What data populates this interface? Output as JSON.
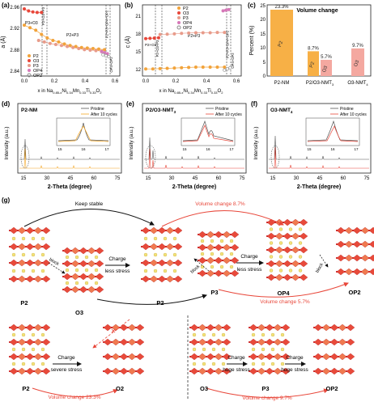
{
  "panels": {
    "a": {
      "tag": "(a)",
      "ylabel": "a (Å)",
      "xlabel_parts": [
        "x in Na",
        "0.85-x",
        "Ni",
        "0.34",
        "Mn",
        "0.33",
        "Ti",
        "0.33",
        "O",
        "2"
      ],
      "yticks": [
        "2.84",
        "2.88",
        "2.92",
        "2.96"
      ],
      "xticks": [
        "0.0",
        "0.2",
        "0.4",
        "0.6"
      ],
      "legend": [
        "P2",
        "O3",
        "P3",
        "OP4",
        "OP2"
      ],
      "annotations": [
        "P2+O3+P3",
        "P3+O3",
        "P2+P3",
        "P2+P3+OP4+OP2",
        "OP4+OP2"
      ]
    },
    "b": {
      "tag": "(b)",
      "ylabel": "c (Å)",
      "xlabel_parts": [
        "x in Na",
        "0.85-x",
        "Ni",
        "0.34",
        "Mn",
        "0.33",
        "Ti",
        "0.33",
        "O",
        "2"
      ],
      "yticks": [
        "12",
        "15",
        "18",
        "21"
      ],
      "xticks": [
        "0.0",
        "0.2",
        "0.4",
        "0.6"
      ],
      "legend": [
        "P2",
        "O3",
        "P3",
        "OP4",
        "OP2"
      ],
      "annotations": [
        "P2+O3",
        "P2+O3+P3",
        "P2+P3",
        "P2+P3+OP4+OP2",
        "OP4+OP2"
      ]
    },
    "c": {
      "tag": "(c)",
      "title": "Volume change",
      "ylabel": "Percent (%)",
      "yticks": [
        "0",
        "5",
        "10",
        "15",
        "20",
        "25"
      ]
    },
    "d": {
      "tag": "(d)",
      "label": "P2-NM",
      "legend": [
        "Pristine",
        "After 10 cycles"
      ],
      "inset_ticks": [
        "15",
        "16",
        "17"
      ],
      "xticks": [
        "15",
        "30",
        "45",
        "60",
        "75"
      ],
      "ylabel": "Intensity (a.u.)",
      "xlabel": "2-Theta (degree)"
    },
    "e": {
      "tag": "(e)",
      "label_main": "P2/O3-NMT",
      "label_sub": "3",
      "legend": [
        "Pristine",
        "After 10 cycles"
      ],
      "inset_ticks": [
        "15",
        "16",
        "17"
      ],
      "xticks": [
        "15",
        "30",
        "45",
        "60",
        "75"
      ],
      "ylabel": "Intensity (a.u.)",
      "xlabel": "2-Theta (degree)"
    },
    "f": {
      "tag": "(f)",
      "label_main": "O3-NMT",
      "label_sub": "4",
      "legend": [
        "Pristine",
        "After 10 cycles"
      ],
      "inset_ticks": [
        "15",
        "16",
        "17"
      ],
      "xticks": [
        "15",
        "30",
        "45",
        "60",
        "75"
      ],
      "ylabel": "Intensity (a.u.)",
      "xlabel": "2-Theta (degree)"
    },
    "g": {
      "tag": "(g)",
      "keep_stable": "Keep stable",
      "vc_87": "Volume change 8.7%",
      "vc_57": "Volume change 5.7%",
      "vc_233": "Volume change 23.3%",
      "vc_97": "Volume change 9.7%",
      "charge": "Charge",
      "less_stress": "less stress",
      "severe_stress": "severe stress",
      "huge_stress": "huge stress",
      "block": "block",
      "phases": {
        "p2": "P2",
        "o3": "O3",
        "p3": "P3",
        "op4": "OP4",
        "op2": "OP2",
        "o2": "O2"
      }
    }
  },
  "chart_data": [
    {
      "panel": "c",
      "type": "bar",
      "title": "Volume change",
      "ylabel": "Percent (%)",
      "ylim": [
        0,
        25
      ],
      "categories": [
        "P2-NM",
        "P2/O3-NMT",
        "O3-NMT"
      ],
      "category_subscripts": [
        "",
        "3",
        "4"
      ],
      "bars": [
        {
          "group": 0,
          "phase": "P2",
          "value": 23.3,
          "label": "23.3%",
          "color": "#f7b046"
        },
        {
          "group": 1,
          "phase": "P2",
          "value": 8.7,
          "label": "8.7%",
          "color": "#f7b046"
        },
        {
          "group": 1,
          "phase": "O3",
          "value": 5.7,
          "label": "5.7%",
          "color": "#f4a8a0"
        },
        {
          "group": 2,
          "phase": "O3",
          "value": 9.7,
          "label": "9.7%",
          "color": "#f4a8a0"
        }
      ]
    },
    {
      "panel": "a",
      "type": "scatter",
      "ylabel": "a (Å)",
      "ylim": [
        2.83,
        2.97
      ],
      "xlim": [
        0,
        0.65
      ],
      "series": [
        {
          "name": "P2",
          "color": "#f2a33a",
          "x": [
            0.0,
            0.04,
            0.08,
            0.12,
            0.16,
            0.2,
            0.24,
            0.28,
            0.32,
            0.36,
            0.4,
            0.44,
            0.48,
            0.52,
            0.56
          ],
          "y": [
            2.93,
            2.925,
            2.92,
            2.912,
            2.905,
            2.9,
            2.897,
            2.893,
            2.89,
            2.888,
            2.886,
            2.885,
            2.884,
            2.883,
            2.882
          ]
        },
        {
          "name": "O3",
          "color": "#e8473a",
          "x": [
            0.0,
            0.03,
            0.06,
            0.09,
            0.12
          ],
          "y": [
            2.962,
            2.958,
            2.956,
            2.955,
            2.955
          ]
        },
        {
          "name": "P3",
          "color": "#e89b8a",
          "x": [
            0.1,
            0.14,
            0.18,
            0.22,
            0.26,
            0.3,
            0.34,
            0.38,
            0.42,
            0.46,
            0.5,
            0.54
          ],
          "y": [
            2.9,
            2.897,
            2.894,
            2.892,
            2.89,
            2.888,
            2.886,
            2.884,
            2.882,
            2.881,
            2.88,
            2.879
          ]
        },
        {
          "name": "OP4",
          "color": "#d678b8",
          "x": [
            0.54,
            0.56,
            0.58
          ],
          "y": [
            2.878,
            2.876,
            2.874
          ]
        },
        {
          "name": "OP2",
          "color": "#888888",
          "x": [
            0.55,
            0.57,
            0.59
          ],
          "y": [
            2.872,
            2.87,
            2.868
          ]
        }
      ]
    },
    {
      "panel": "b",
      "type": "scatter",
      "ylabel": "c (Å)",
      "ylim": [
        10,
        22
      ],
      "xlim": [
        0,
        0.65
      ],
      "series": [
        {
          "name": "P2",
          "color": "#f2a33a",
          "x": [
            0.0,
            0.05,
            0.1,
            0.15,
            0.2,
            0.25,
            0.3,
            0.35,
            0.4,
            0.45,
            0.5,
            0.55
          ],
          "y": [
            11.2,
            11.2,
            11.25,
            11.3,
            11.35,
            11.4,
            11.45,
            11.5,
            11.5,
            11.5,
            11.5,
            11.5
          ]
        },
        {
          "name": "O3",
          "color": "#e8473a",
          "x": [
            0.0,
            0.03,
            0.06,
            0.09
          ],
          "y": [
            16.3,
            16.35,
            16.4,
            16.45
          ]
        },
        {
          "name": "P3",
          "color": "#e89b8a",
          "x": [
            0.1,
            0.15,
            0.2,
            0.25,
            0.3,
            0.35,
            0.4,
            0.45,
            0.5,
            0.55
          ],
          "y": [
            17.0,
            17.05,
            17.1,
            17.2,
            17.25,
            17.3,
            17.3,
            17.3,
            17.35,
            17.35
          ]
        },
        {
          "name": "OP4",
          "color": "#d678b8",
          "x": [
            0.54,
            0.56,
            0.58
          ],
          "y": [
            21.0,
            21.1,
            21.2
          ]
        },
        {
          "name": "OP2",
          "color": "#888888",
          "x": [
            0.55,
            0.57,
            0.59
          ],
          "y": [
            11.0,
            11.2,
            11.4
          ]
        }
      ]
    }
  ]
}
